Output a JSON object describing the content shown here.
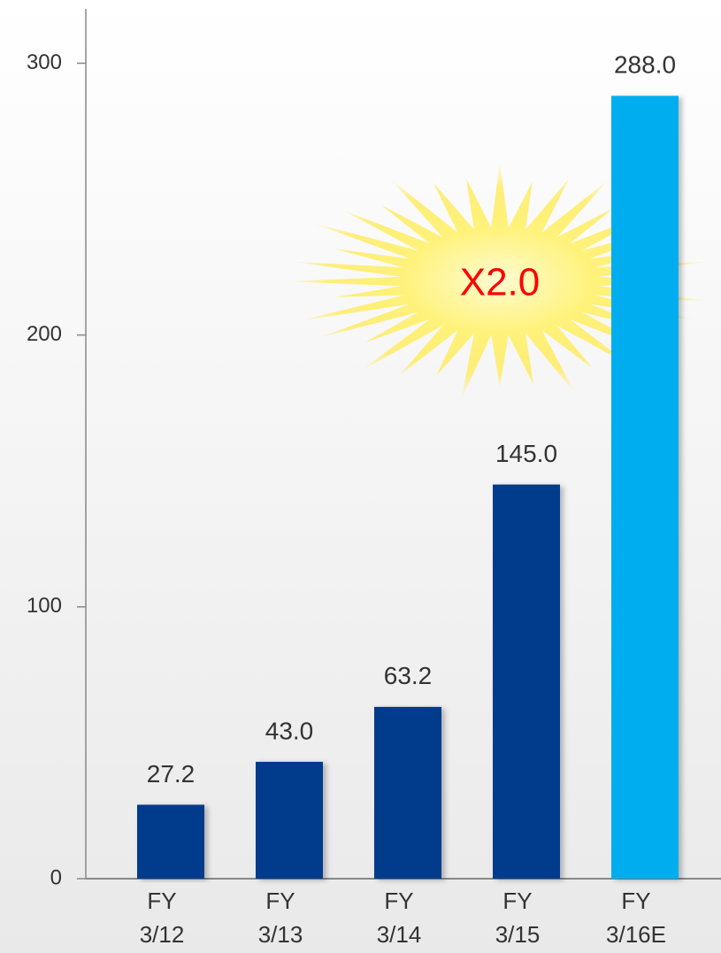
{
  "chart_data": {
    "type": "bar",
    "categories": [
      [
        "FY",
        "3/12"
      ],
      [
        "FY",
        "3/13"
      ],
      [
        "FY",
        "3/14"
      ],
      [
        "FY",
        "3/15"
      ],
      [
        "FY",
        "3/16E"
      ]
    ],
    "values": [
      27.2,
      43,
      63.2,
      145,
      288
    ],
    "value_labels": [
      "27.2",
      "43.0",
      "63.2",
      "145.0",
      "288.0"
    ],
    "colors": [
      "#003a8c",
      "#003a8c",
      "#003a8c",
      "#003a8c",
      "#00aeef"
    ],
    "ylim": [
      0,
      320
    ],
    "yticks": [
      0,
      100,
      200,
      300
    ],
    "annotation": "X2.0",
    "annotation_color": "#ff0000"
  }
}
